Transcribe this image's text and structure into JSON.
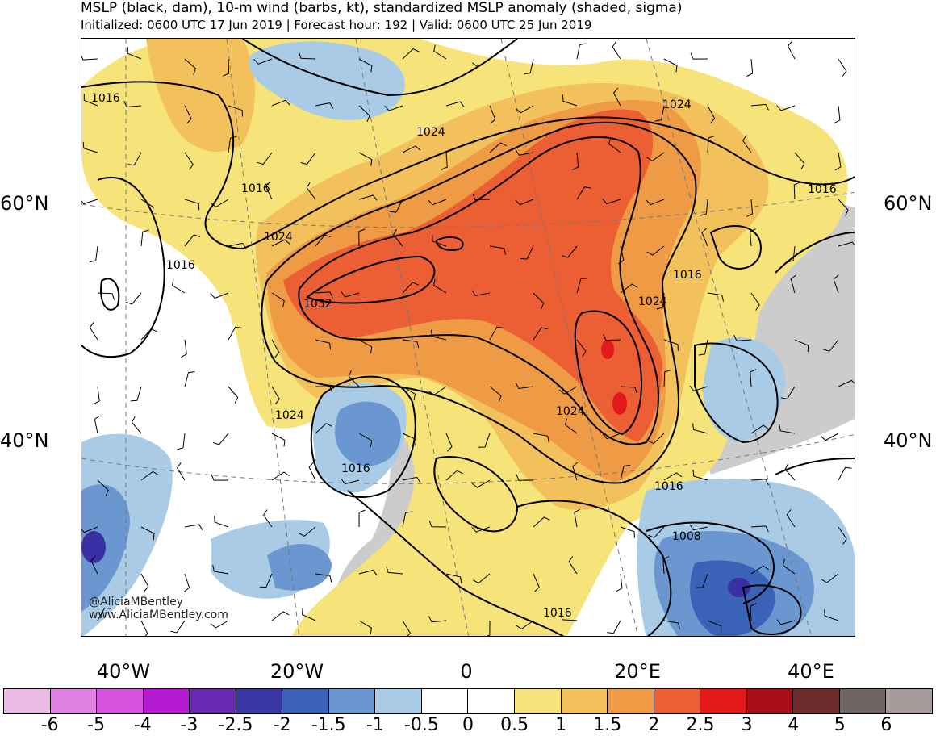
{
  "header": {
    "title": "MSLP (black, dam), 10-m wind (barbs, kt), standardized MSLP anomaly (shaded, sigma)",
    "subtitle": "Initialized: 0600 UTC 17 Jun 2019 | Forecast hour: 192 | Valid: 0600 UTC 25 Jun 2019"
  },
  "map": {
    "lat_labels": {
      "left_60": "60°N",
      "right_60": "60°N",
      "left_40": "40°N",
      "right_40": "40°N"
    },
    "lon_labels": [
      "40°W",
      "20°W",
      "0",
      "20°E",
      "40°E"
    ],
    "contour_labels": [
      "1016",
      "1016",
      "1016",
      "1024",
      "1024",
      "1024",
      "1032",
      "1024",
      "1024",
      "1016",
      "1016",
      "1024",
      "1016",
      "1016",
      "1008",
      "1016",
      "1024"
    ],
    "credit_handle": "@AliciaMBentley",
    "credit_url": "www.AliciaMBentley.com"
  },
  "colors": {
    "anomaly_high_1": "#f6e37a",
    "anomaly_high_2": "#f2c15b",
    "anomaly_high_3": "#ef9a45",
    "anomaly_high_4": "#ec5f34",
    "anomaly_high_5": "#e31a1c",
    "anomaly_low_1": "#a9cbe6",
    "anomaly_low_2": "#6b97d1",
    "anomaly_low_3": "#3a63b8",
    "anomaly_low_4": "#3a2fa4",
    "land_gray": "#cccccc"
  },
  "colorbar": {
    "colors": [
      "#ebbae5",
      "#e082e1",
      "#d653e0",
      "#b31ad2",
      "#6a28b0",
      "#3a36a4",
      "#3a63b8",
      "#6b97d1",
      "#a9cbe6",
      "#ffffff",
      "#ffffff",
      "#f6e37a",
      "#f2c15b",
      "#ef9a45",
      "#ec5f34",
      "#e31a1c",
      "#a70f17",
      "#6e2d2d",
      "#6e6563",
      "#a79c9b"
    ],
    "labels": [
      "-6",
      "-5",
      "-4",
      "-3",
      "-2.5",
      "-2",
      "-1.5",
      "-1",
      "-0.5",
      "0",
      "0.5",
      "1",
      "1.5",
      "2",
      "2.5",
      "3",
      "4",
      "5",
      "6"
    ]
  }
}
